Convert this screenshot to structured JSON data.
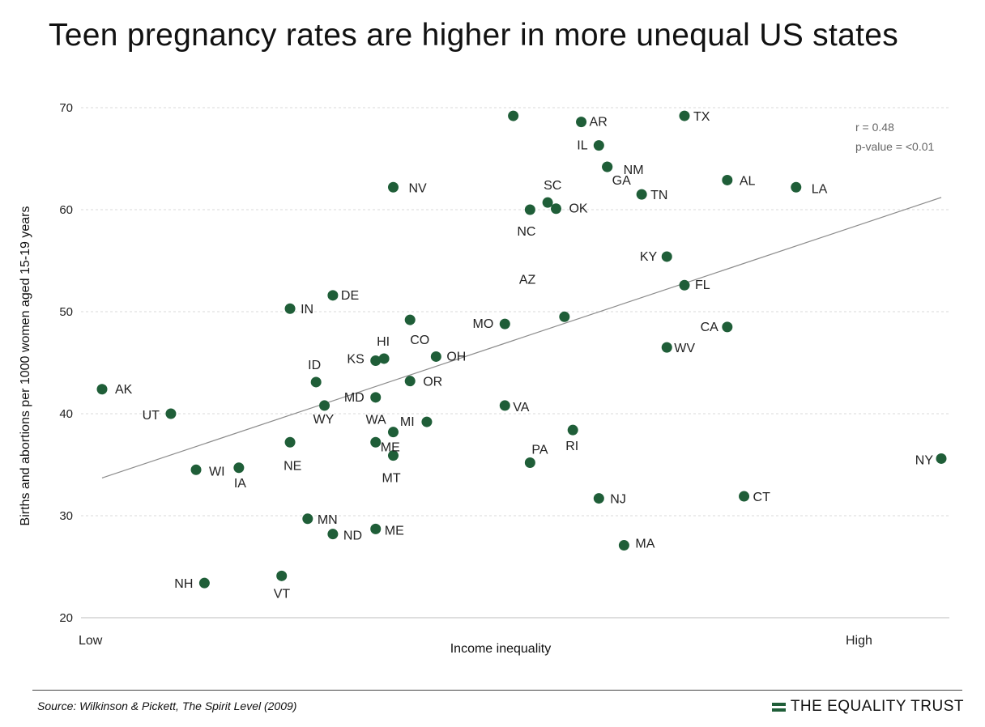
{
  "title": "Teen pregnancy rates are higher in more unequal US states",
  "source": "Source: Wilkinson & Pickett, The Spirit Level (2009)",
  "brand": "THE EQUALITY TRUST",
  "chart_data": {
    "type": "scatter",
    "title": "Teen pregnancy rates are higher in more unequal US states",
    "xlabel": "Income inequality",
    "ylabel": "Births and abortions per 1000 women aged 15-19 years",
    "x_scale_note": "relative income inequality index (0 = Low, 100 = High)",
    "x_tick_labels": [
      "Low",
      "High"
    ],
    "xlim": [
      0,
      100
    ],
    "ylim": [
      20,
      70
    ],
    "y_ticks": [
      20,
      30,
      40,
      50,
      60,
      70
    ],
    "grid": "horizontal dashed",
    "point_color": "#1f5e38",
    "trend_line": {
      "x": [
        0,
        100
      ],
      "y": [
        33.7,
        61.2
      ]
    },
    "stats": [
      "r = 0.48",
      "p-value = <0.01"
    ],
    "points": [
      {
        "label": "AK",
        "x": 0.0,
        "y": 42.4
      },
      {
        "label": "UT",
        "x": 8.2,
        "y": 40.0
      },
      {
        "label": "WI",
        "x": 11.2,
        "y": 34.5
      },
      {
        "label": "IA",
        "x": 16.3,
        "y": 34.7
      },
      {
        "label": "NH",
        "x": 12.2,
        "y": 23.4
      },
      {
        "label": "VT",
        "x": 21.4,
        "y": 24.1
      },
      {
        "label": "NE",
        "x": 22.4,
        "y": 37.2
      },
      {
        "label": "IN",
        "x": 22.4,
        "y": 50.3
      },
      {
        "label": "DE",
        "x": 27.5,
        "y": 51.6
      },
      {
        "label": "ID",
        "x": 25.5,
        "y": 43.1
      },
      {
        "label": "WY",
        "x": 26.5,
        "y": 40.8
      },
      {
        "label": "MN",
        "x": 24.5,
        "y": 29.7
      },
      {
        "label": "ND",
        "x": 27.5,
        "y": 28.2
      },
      {
        "label": "MD",
        "x": 32.6,
        "y": 41.6
      },
      {
        "label": "KS",
        "x": 32.6,
        "y": 45.2
      },
      {
        "label": "HI",
        "x": 33.6,
        "y": 45.4
      },
      {
        "label": "WA",
        "x": 34.7,
        "y": 38.2
      },
      {
        "label": "ME",
        "x": 32.6,
        "y": 37.2
      },
      {
        "label": "MT",
        "x": 34.7,
        "y": 35.9
      },
      {
        "label": "ME",
        "x": 32.6,
        "y": 28.7
      },
      {
        "label": "NV",
        "x": 34.7,
        "y": 62.2
      },
      {
        "label": "CO",
        "x": 36.7,
        "y": 49.2
      },
      {
        "label": "OR",
        "x": 36.7,
        "y": 43.2
      },
      {
        "label": "MI",
        "x": 38.7,
        "y": 39.2
      },
      {
        "label": "OH",
        "x": 39.8,
        "y": 45.6
      },
      {
        "label": "MO",
        "x": 48.0,
        "y": 48.8
      },
      {
        "label": "VA",
        "x": 48.0,
        "y": 40.8
      },
      {
        "label": "",
        "x": 49.0,
        "y": 69.2
      },
      {
        "label": "NC",
        "x": 51.0,
        "y": 60.0
      },
      {
        "label": "SC",
        "x": 53.1,
        "y": 60.7
      },
      {
        "label": "OK",
        "x": 54.1,
        "y": 60.1
      },
      {
        "label": "AZ",
        "x": 55.1,
        "y": 49.5
      },
      {
        "label": "PA",
        "x": 51.0,
        "y": 35.2
      },
      {
        "label": "RI",
        "x": 56.1,
        "y": 38.4
      },
      {
        "label": "AR",
        "x": 57.1,
        "y": 68.6
      },
      {
        "label": "IL",
        "x": 59.2,
        "y": 66.3
      },
      {
        "label": "NM",
        "x": 60.2,
        "y": 64.2
      },
      {
        "label": "GA",
        "x": 60.2,
        "y": 64.2
      },
      {
        "label": "NJ",
        "x": 59.2,
        "y": 31.7
      },
      {
        "label": "MA",
        "x": 62.2,
        "y": 27.1
      },
      {
        "label": "TN",
        "x": 64.3,
        "y": 61.5
      },
      {
        "label": "TX",
        "x": 69.4,
        "y": 69.2
      },
      {
        "label": "KY",
        "x": 67.3,
        "y": 55.4
      },
      {
        "label": "FL",
        "x": 69.4,
        "y": 52.6
      },
      {
        "label": "WV",
        "x": 67.3,
        "y": 46.5
      },
      {
        "label": "AL",
        "x": 74.5,
        "y": 62.9
      },
      {
        "label": "CA",
        "x": 74.5,
        "y": 48.5
      },
      {
        "label": "CT",
        "x": 76.5,
        "y": 31.9
      },
      {
        "label": "LA",
        "x": 82.7,
        "y": 62.2
      },
      {
        "label": "NY",
        "x": 100.0,
        "y": 35.6
      }
    ]
  }
}
